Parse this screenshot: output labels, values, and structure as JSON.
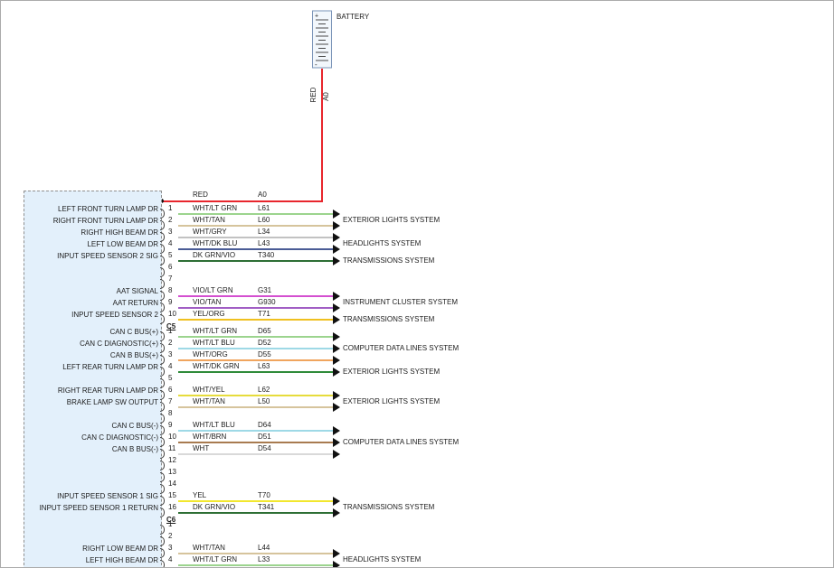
{
  "colors": {
    "module_fill": "#e3f0fb",
    "feed_red": "#e8262d"
  },
  "battery": {
    "label": "BATTERY",
    "plus": "+",
    "minus": "-"
  },
  "feed": {
    "color_label": "RED",
    "circuit": "A0",
    "color": "#e8262d"
  },
  "header": {
    "color_label": "RED",
    "circuit": "A0"
  },
  "sections": [
    {
      "connector": "",
      "pins": [
        {
          "pin": 1,
          "label": "LEFT FRONT TURN LAMP DR",
          "wire": "WHT/LT GRN",
          "circuit": "L61",
          "color": "#9cd48e"
        },
        {
          "pin": 2,
          "label": "RIGHT FRONT TURN LAMP DR",
          "wire": "WHT/TAN",
          "circuit": "L60",
          "color": "#d6c49c"
        },
        {
          "pin": 3,
          "label": "RIGHT HIGH BEAM DR",
          "wire": "WHT/GRY",
          "circuit": "L34",
          "color": "#c2c2c2"
        },
        {
          "pin": 4,
          "label": "LEFT LOW BEAM DR",
          "wire": "WHT/DK BLU",
          "circuit": "L43",
          "color": "#4a5c96"
        },
        {
          "pin": 5,
          "label": "INPUT SPEED SENSOR 2 SIG",
          "wire": "DK GRN/VIO",
          "circuit": "T340",
          "color": "#2e6f35"
        },
        {
          "pin": 6
        },
        {
          "pin": 7
        },
        {
          "pin": 8,
          "label": "AAT SIGNAL",
          "wire": "VIO/LT GRN",
          "circuit": "G31",
          "color": "#d44fd0"
        },
        {
          "pin": 9,
          "label": "AAT RETURN",
          "wire": "VIO/TAN",
          "circuit": "G930",
          "color": "#a15ec4"
        },
        {
          "pin": 10,
          "label": "INPUT SPEED SENSOR 2",
          "wire": "YEL/ORG",
          "circuit": "T71",
          "color": "#efc01f"
        }
      ],
      "groups": [
        {
          "pins": [
            1,
            2
          ],
          "system": "EXTERIOR LIGHTS SYSTEM"
        },
        {
          "pins": [
            3,
            4
          ],
          "system": "HEADLIGHTS SYSTEM"
        },
        {
          "pins": [
            5
          ],
          "system": "TRANSMISSIONS SYSTEM"
        },
        {
          "pins": [
            8,
            9
          ],
          "system": "INSTRUMENT CLUSTER SYSTEM"
        },
        {
          "pins": [
            10
          ],
          "system": "TRANSMISSIONS SYSTEM"
        }
      ]
    },
    {
      "connector": "C5",
      "pins": [
        {
          "pin": 1,
          "label": "CAN C BUS(+)",
          "wire": "WHT/LT GRN",
          "circuit": "D65",
          "color": "#9cd48e"
        },
        {
          "pin": 2,
          "label": "CAN C DIAGNOSTIC(+)",
          "wire": "WHT/LT BLU",
          "circuit": "D52",
          "color": "#9ed9e6"
        },
        {
          "pin": 3,
          "label": "CAN B BUS(+)",
          "wire": "WHT/ORG",
          "circuit": "D55",
          "color": "#f0a55e"
        },
        {
          "pin": 4,
          "label": "LEFT REAR TURN LAMP DR",
          "wire": "WHT/DK GRN",
          "circuit": "L63",
          "color": "#2f8b3a"
        },
        {
          "pin": 5
        },
        {
          "pin": 6,
          "label": "RIGHT REAR TURN LAMP DR",
          "wire": "WHT/YEL",
          "circuit": "L62",
          "color": "#e6dc3c"
        },
        {
          "pin": 7,
          "label": "BRAKE LAMP SW OUTPUT",
          "wire": "WHT/TAN",
          "circuit": "L50",
          "color": "#d6c49c"
        },
        {
          "pin": 8
        },
        {
          "pin": 9,
          "label": "CAN C BUS(-)",
          "wire": "WHT/LT BLU",
          "circuit": "D64",
          "color": "#9ed9e6"
        },
        {
          "pin": 10,
          "label": "CAN C DIAGNOSTIC(-)",
          "wire": "WHT/BRN",
          "circuit": "D51",
          "color": "#a87b50"
        },
        {
          "pin": 11,
          "label": "CAN B BUS(-)",
          "wire": "WHT",
          "circuit": "D54",
          "color": "#d9d9d9"
        },
        {
          "pin": 12
        },
        {
          "pin": 13
        },
        {
          "pin": 14
        },
        {
          "pin": 15,
          "label": "INPUT SPEED SENSOR 1 SIG",
          "wire": "YEL",
          "circuit": "T70",
          "color": "#f2e72e"
        },
        {
          "pin": 16,
          "label": "INPUT SPEED SENSOR 1 RETURN",
          "wire": "DK GRN/VIO",
          "circuit": "T341",
          "color": "#2e6f35"
        }
      ],
      "groups": [
        {
          "pins": [
            1,
            2,
            3
          ],
          "system": "COMPUTER DATA LINES SYSTEM"
        },
        {
          "pins": [
            4
          ],
          "system": "EXTERIOR LIGHTS SYSTEM"
        },
        {
          "pins": [
            6,
            7
          ],
          "system": "EXTERIOR LIGHTS SYSTEM"
        },
        {
          "pins": [
            9,
            10,
            11
          ],
          "system": "COMPUTER DATA LINES SYSTEM"
        },
        {
          "pins": [
            15,
            16
          ],
          "system": "TRANSMISSIONS SYSTEM"
        }
      ]
    },
    {
      "connector": "C6",
      "pins": [
        {
          "pin": 1
        },
        {
          "pin": 2
        },
        {
          "pin": 3,
          "label": "RIGHT LOW BEAM DR",
          "wire": "WHT/TAN",
          "circuit": "L44",
          "color": "#d6c49c"
        },
        {
          "pin": 4,
          "label": "LEFT HIGH BEAM DR",
          "wire": "WHT/LT GRN",
          "circuit": "L33",
          "color": "#9cd48e"
        }
      ],
      "groups": [
        {
          "pins": [
            3,
            4
          ],
          "system": "HEADLIGHTS SYSTEM"
        }
      ]
    }
  ]
}
